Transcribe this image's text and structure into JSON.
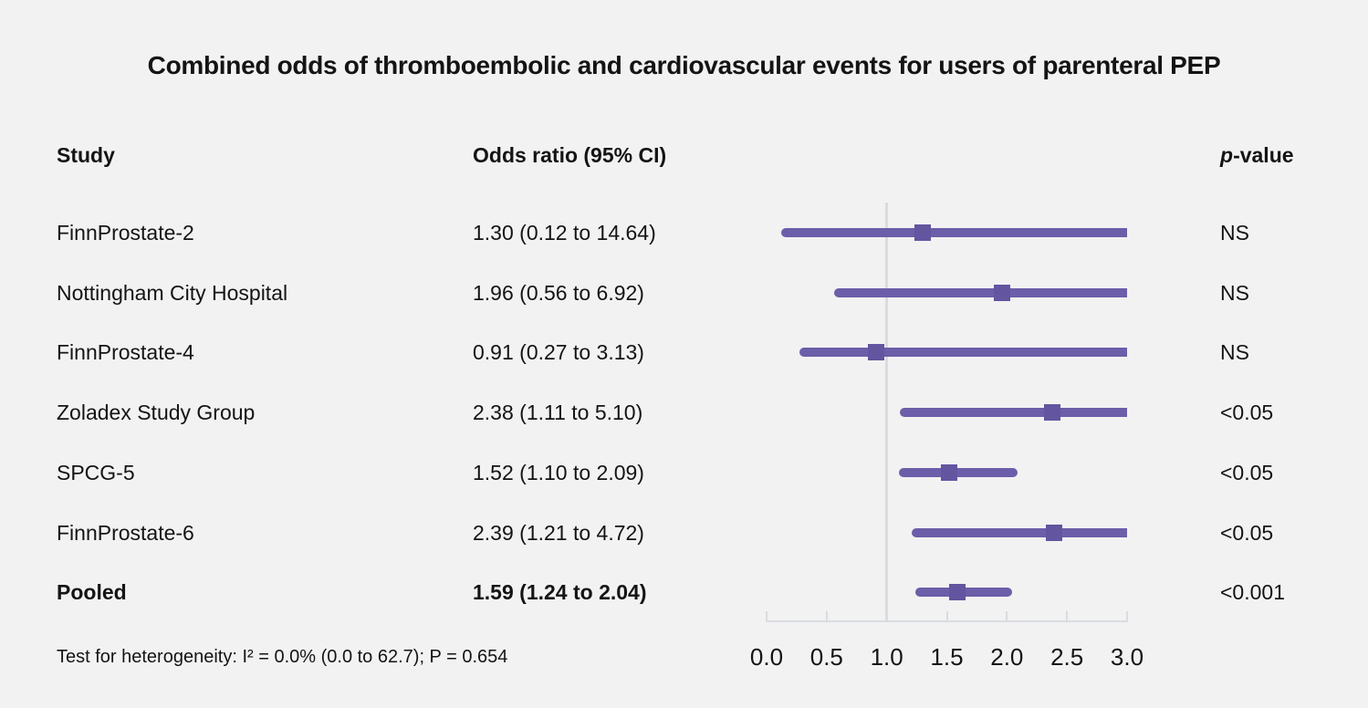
{
  "title": "Combined odds of thromboembolic and cardiovascular events for users of parenteral PEP",
  "columns": {
    "study": "Study",
    "odds_ratio": "Odds ratio (95% CI)",
    "pvalue_italic": "p",
    "pvalue_rest": "-value"
  },
  "footer": "Test for heterogeneity: I² = 0.0% (0.0 to 62.7); P = 0.654",
  "colors": {
    "background": "#f2f2f2",
    "text": "#141414",
    "ci_line": "#6c5ea9",
    "marker": "#63559f",
    "axis": "#d9dce1"
  },
  "chart_data": {
    "type": "scatter",
    "subtype": "forest-plot",
    "title": "Combined odds of thromboembolic and cardiovascular events for users of parenteral PEP",
    "xlabel": "",
    "ylabel": "",
    "xlim": [
      0.0,
      3.0
    ],
    "x_ticks": [
      "0.0",
      "0.5",
      "1.0",
      "1.5",
      "2.0",
      "2.5",
      "3.0"
    ],
    "x_tick_values": [
      0.0,
      0.5,
      1.0,
      1.5,
      2.0,
      2.5,
      3.0
    ],
    "reference_line_x": 1.0,
    "grid": false,
    "legend": false,
    "rows": [
      {
        "study": "FinnProstate-2",
        "or_text": "1.30 (0.12 to 14.64)",
        "estimate": 1.3,
        "ci_low": 0.12,
        "ci_high": 14.64,
        "pvalue": "NS",
        "bold": false
      },
      {
        "study": "Nottingham City Hospital",
        "or_text": "1.96 (0.56 to 6.92)",
        "estimate": 1.96,
        "ci_low": 0.56,
        "ci_high": 6.92,
        "pvalue": "NS",
        "bold": false
      },
      {
        "study": "FinnProstate-4",
        "or_text": "0.91 (0.27 to 3.13)",
        "estimate": 0.91,
        "ci_low": 0.27,
        "ci_high": 3.13,
        "pvalue": "NS",
        "bold": false
      },
      {
        "study": "Zoladex Study Group",
        "or_text": "2.38 (1.11 to 5.10)",
        "estimate": 2.38,
        "ci_low": 1.11,
        "ci_high": 5.1,
        "pvalue": "<0.05",
        "bold": false
      },
      {
        "study": "SPCG-5",
        "or_text": "1.52 (1.10 to 2.09)",
        "estimate": 1.52,
        "ci_low": 1.1,
        "ci_high": 2.09,
        "pvalue": "<0.05",
        "bold": false
      },
      {
        "study": "FinnProstate-6",
        "or_text": "2.39 (1.21 to 4.72)",
        "estimate": 2.39,
        "ci_low": 1.21,
        "ci_high": 4.72,
        "pvalue": "<0.05",
        "bold": false
      },
      {
        "study": "Pooled",
        "or_text": "1.59 (1.24 to 2.04)",
        "estimate": 1.59,
        "ci_low": 1.24,
        "ci_high": 2.04,
        "pvalue": "<0.001",
        "bold": true
      }
    ]
  }
}
